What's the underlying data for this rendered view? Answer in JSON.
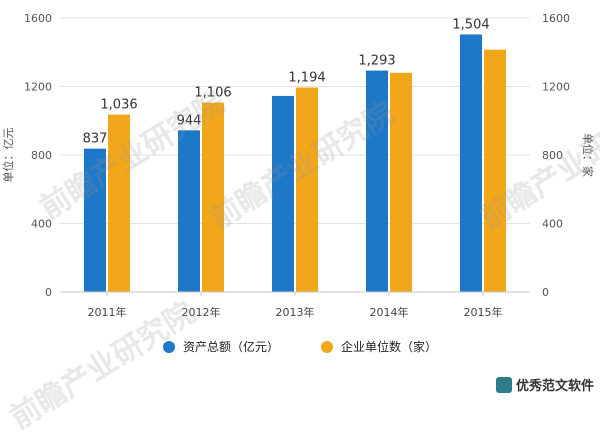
{
  "chart_data": {
    "type": "bar",
    "categories": [
      "2011年",
      "2012年",
      "2013年",
      "2014年",
      "2015年"
    ],
    "series": [
      {
        "name": "资产总额（亿元）",
        "values": [
          837,
          944,
          1145,
          1293,
          1504
        ],
        "labels": [
          "837",
          "944",
          "",
          "1,293",
          "1,504"
        ],
        "color": "#1e78c8"
      },
      {
        "name": "企业单位数（家）",
        "values": [
          1036,
          1106,
          1194,
          1280,
          1415
        ],
        "labels": [
          "1,036",
          "1,106",
          "1,194",
          "",
          ""
        ],
        "color": "#f2a71b"
      }
    ],
    "ylim": [
      0,
      1600
    ],
    "yticks": [
      0,
      400,
      800,
      1200,
      1600
    ],
    "ytick_labels": [
      "0",
      "400",
      "800",
      "1200",
      "1600"
    ],
    "y2ticks": [
      0,
      400,
      800,
      1200,
      1600
    ],
    "y2tick_labels": [
      "0",
      "400",
      "800",
      "1200",
      "1600"
    ],
    "ylabel": "单位：亿元",
    "y2label": "单位：家",
    "grid": true,
    "legend_position": "bottom"
  },
  "watermark_text": "前瞻产业研究院",
  "brand_text": "优秀范文软件"
}
